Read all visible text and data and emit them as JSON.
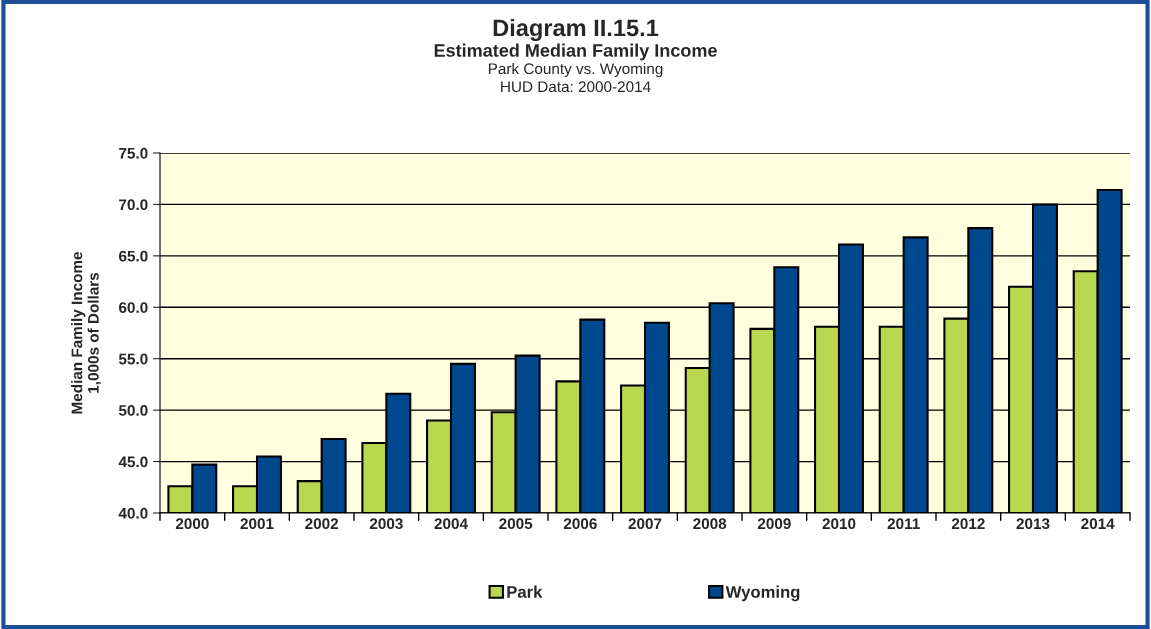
{
  "chart_data": {
    "type": "bar",
    "title": "Diagram II.15.1",
    "subtitle": [
      "Estimated Median Family Income",
      "Park County vs. Wyoming",
      "HUD Data: 2000-2014"
    ],
    "ylabel": "Median Family Income\n1,000s of Dollars",
    "categories": [
      "2000",
      "2001",
      "2002",
      "2003",
      "2004",
      "2005",
      "2006",
      "2007",
      "2008",
      "2009",
      "2010",
      "2011",
      "2012",
      "2013",
      "2014"
    ],
    "series": [
      {
        "name": "Park",
        "color": "#b9d84f",
        "values": [
          42.6,
          42.6,
          43.1,
          46.8,
          49.0,
          49.8,
          52.8,
          52.4,
          54.1,
          57.9,
          58.1,
          58.1,
          58.9,
          62.0,
          63.5
        ]
      },
      {
        "name": "Wyoming",
        "color": "#00488e",
        "values": [
          44.7,
          45.5,
          47.2,
          51.6,
          54.5,
          55.3,
          58.8,
          58.5,
          60.4,
          63.9,
          66.1,
          66.8,
          67.7,
          70.0,
          71.4
        ]
      }
    ],
    "ylim": [
      40,
      75
    ],
    "yticks": [
      {
        "value": 40,
        "label": "40.0"
      },
      {
        "value": 45,
        "label": "45.0"
      },
      {
        "value": 50,
        "label": "50.0"
      },
      {
        "value": 55,
        "label": "55.0"
      },
      {
        "value": 60,
        "label": "60.0"
      },
      {
        "value": 65,
        "label": "65.0"
      },
      {
        "value": 70,
        "label": "70.0"
      },
      {
        "value": 75,
        "label": "75.0"
      }
    ],
    "grid": "y",
    "legend": "bottom"
  }
}
